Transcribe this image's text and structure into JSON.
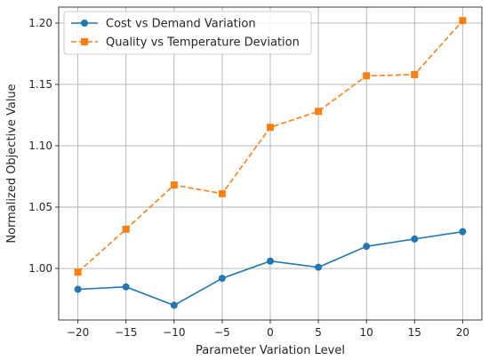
{
  "chart_data": {
    "type": "line",
    "xlabel": "Parameter Variation Level",
    "ylabel": "Normalized Objective Value",
    "x": [
      -20,
      -15,
      -10,
      -5,
      0,
      5,
      10,
      15,
      20
    ],
    "xlim": [
      -22,
      22
    ],
    "ylim": [
      0.958,
      1.213
    ],
    "x_ticks": [
      -20,
      -15,
      -10,
      -5,
      0,
      5,
      10,
      15,
      20
    ],
    "y_ticks": [
      1.0,
      1.05,
      1.1,
      1.15,
      1.2
    ],
    "x_tick_labels": [
      "−20",
      "−15",
      "−10",
      "−5",
      "0",
      "5",
      "10",
      "15",
      "20"
    ],
    "y_tick_labels": [
      "1.00",
      "1.05",
      "1.10",
      "1.15",
      "1.20"
    ],
    "grid": true,
    "legend_position": "top-left",
    "series": [
      {
        "name": "Cost vs Demand Variation",
        "color": "#1f77b4",
        "marker": "circle",
        "linestyle": "solid",
        "values": [
          0.983,
          0.985,
          0.97,
          0.992,
          1.006,
          1.001,
          1.018,
          1.024,
          1.03
        ]
      },
      {
        "name": "Quality vs Temperature Deviation",
        "color": "#ff7f0e",
        "marker": "square",
        "linestyle": "dashed",
        "values": [
          0.997,
          1.032,
          1.068,
          1.061,
          1.115,
          1.128,
          1.157,
          1.158,
          1.202
        ]
      }
    ]
  }
}
